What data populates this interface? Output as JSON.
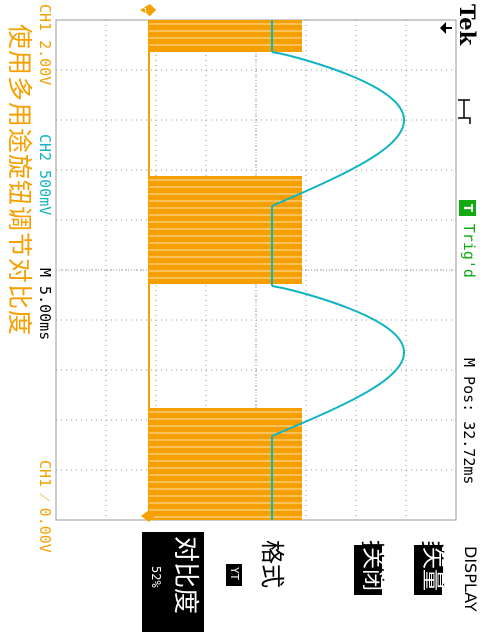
{
  "brand": "Tek",
  "channels": {
    "ch1_scale": "CH1  2.00V",
    "ch2_scale": "CH2  500mV",
    "timebase": "M 5.00ms",
    "trigger_status": "Trig'd",
    "trigger_marker": "T",
    "position": "M Pos: 32.72ms",
    "trigger_readout": "CH1 ⁄ 0.00V"
  },
  "hint": "使用多用途旋钮调节对比度",
  "menu": {
    "title": "DISPLAY",
    "items": [
      {
        "label": "类型",
        "value": "矢量"
      },
      {
        "label": "持续",
        "value": "关闭"
      },
      {
        "label": "格式",
        "value": "YT"
      },
      {
        "label": "对比度",
        "value": "52%"
      }
    ]
  },
  "colors": {
    "ch1": "#f5a000",
    "ch2": "#11b5c2",
    "trigger": "#11aa11",
    "grid": "#9a9a9a",
    "highlight": "#000000"
  },
  "icons": {
    "trigger_edge": "rising-edge-icon",
    "ch1_marker": "ch1-ground-marker-icon",
    "trigger_pos": "trigger-position-arrow-icon"
  }
}
